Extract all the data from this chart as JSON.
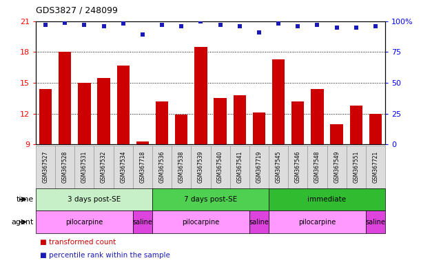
{
  "title": "GDS3827 / 248099",
  "samples": [
    "GSM367527",
    "GSM367528",
    "GSM367531",
    "GSM367532",
    "GSM367534",
    "GSM367718",
    "GSM367536",
    "GSM367538",
    "GSM367539",
    "GSM367540",
    "GSM367541",
    "GSM367719",
    "GSM367545",
    "GSM367546",
    "GSM367548",
    "GSM367549",
    "GSM367551",
    "GSM367721"
  ],
  "red_values": [
    14.4,
    18.0,
    15.0,
    15.5,
    16.7,
    9.3,
    13.2,
    11.9,
    18.5,
    13.5,
    13.8,
    12.1,
    17.3,
    13.2,
    14.4,
    11.0,
    12.8,
    12.0
  ],
  "blue_values": [
    97,
    99,
    97,
    96,
    98,
    89,
    97,
    96,
    100,
    97,
    96,
    91,
    98,
    96,
    97,
    95,
    95,
    96
  ],
  "ylim_left": [
    9,
    21
  ],
  "ylim_right": [
    0,
    100
  ],
  "yticks_left": [
    9,
    12,
    15,
    18,
    21
  ],
  "yticks_right": [
    0,
    25,
    50,
    75,
    100
  ],
  "ytick_labels_right": [
    "0",
    "25",
    "50",
    "75",
    "100%"
  ],
  "bar_color": "#CC0000",
  "dot_color": "#1A1AB8",
  "time_groups": [
    {
      "label": "3 days post-SE",
      "start": 0,
      "end": 5,
      "color": "#C8F0C8"
    },
    {
      "label": "7 days post-SE",
      "start": 6,
      "end": 11,
      "color": "#50D050"
    },
    {
      "label": "immediate",
      "start": 12,
      "end": 17,
      "color": "#30BB30"
    }
  ],
  "agent_groups": [
    {
      "label": "pilocarpine",
      "start": 0,
      "end": 4,
      "color": "#FF99FF"
    },
    {
      "label": "saline",
      "start": 5,
      "end": 5,
      "color": "#DD44DD"
    },
    {
      "label": "pilocarpine",
      "start": 6,
      "end": 10,
      "color": "#FF99FF"
    },
    {
      "label": "saline",
      "start": 11,
      "end": 11,
      "color": "#DD44DD"
    },
    {
      "label": "pilocarpine",
      "start": 12,
      "end": 16,
      "color": "#FF99FF"
    },
    {
      "label": "saline",
      "start": 17,
      "end": 17,
      "color": "#DD44DD"
    }
  ],
  "legend_items": [
    {
      "label": "transformed count",
      "color": "#CC0000"
    },
    {
      "label": "percentile rank within the sample",
      "color": "#1A1AB8"
    }
  ],
  "grid_yticks": [
    12,
    15,
    18
  ],
  "label_box_color": "#DDDDDD",
  "label_box_edgecolor": "#999999"
}
